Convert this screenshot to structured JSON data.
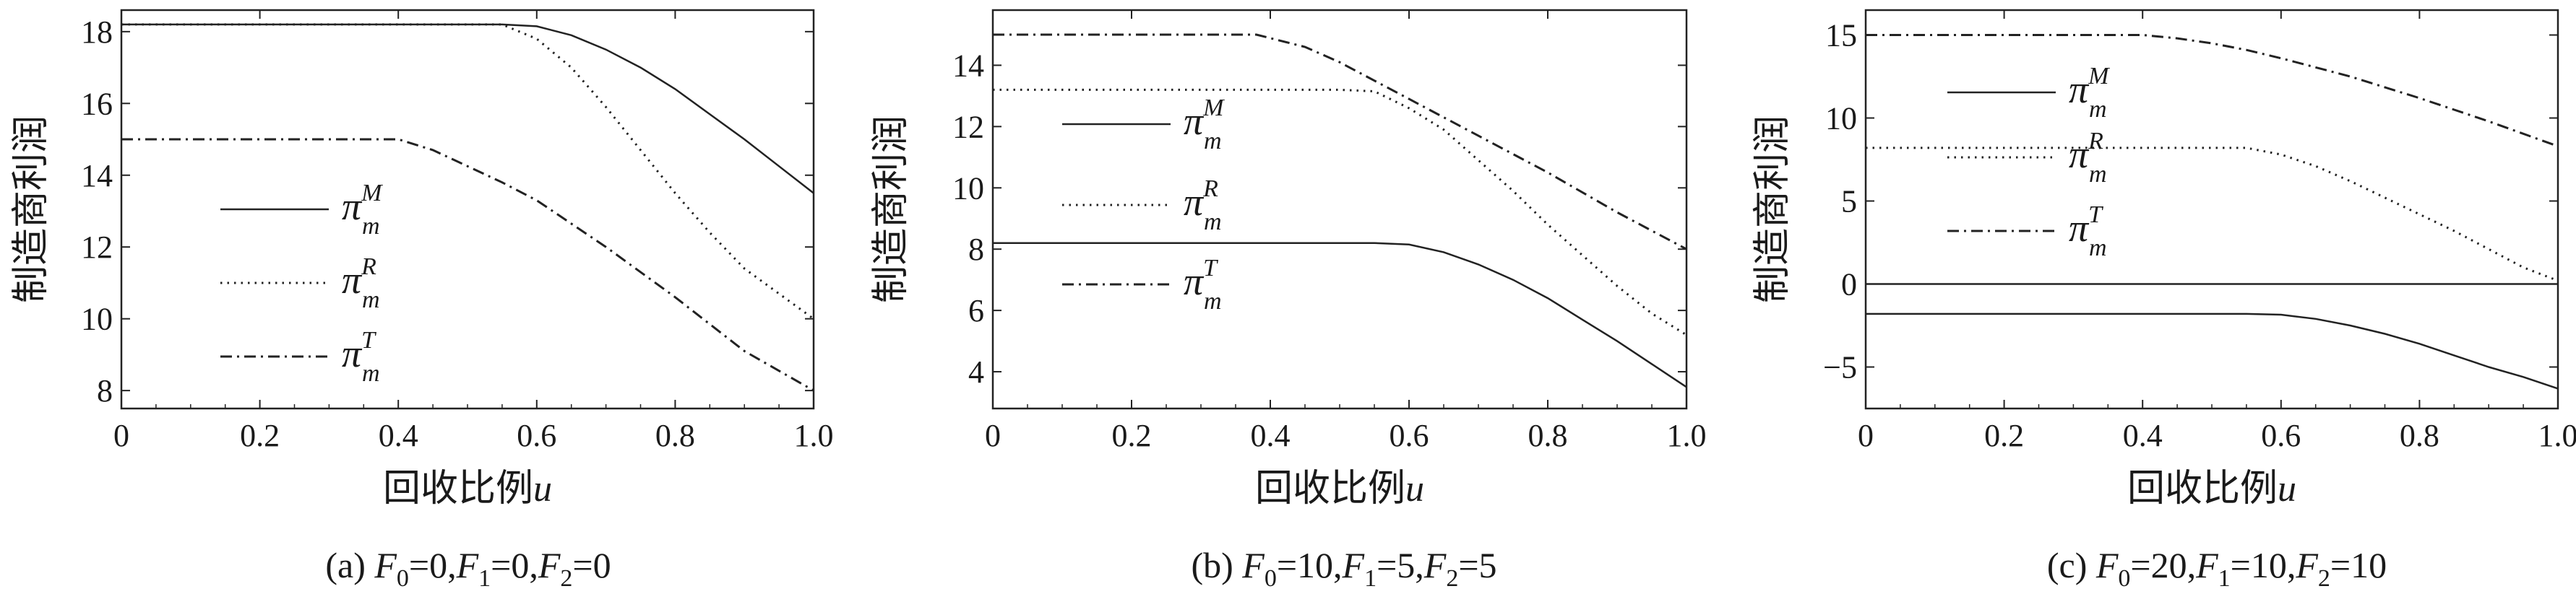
{
  "chart_data": [
    {
      "type": "line",
      "caption": {
        "prefix": "(a) ",
        "text": "F0=0,F1=0,F2=0",
        "parts": [
          {
            "t": "F",
            "s": "0",
            "v": "=0,"
          },
          {
            "t": "F",
            "s": "1",
            "v": "=0,"
          },
          {
            "t": "F",
            "s": "2",
            "v": "=0"
          }
        ]
      },
      "xlabel": "回收比例",
      "xlabel_var": "u",
      "ylabel": "制造商利润",
      "xlim": [
        0,
        1
      ],
      "ylim": [
        7.5,
        18.6
      ],
      "xticks": [
        0,
        0.2,
        0.4,
        0.6,
        0.8,
        1.0
      ],
      "xtick_labels": [
        "0",
        "0.2",
        "0.4",
        "0.6",
        "0.8",
        "1.0"
      ],
      "yticks": [
        8,
        10,
        12,
        14,
        16,
        18
      ],
      "ytick_labels": [
        "8",
        "10",
        "12",
        "14",
        "16",
        "18"
      ],
      "legend": {
        "placement": "middle-left"
      },
      "series": [
        {
          "name": "π_m^M",
          "sym": "π",
          "sub": "m",
          "sup": "M",
          "style": "solid",
          "x": [
            0,
            0.1,
            0.2,
            0.3,
            0.4,
            0.5,
            0.55,
            0.6,
            0.65,
            0.7,
            0.75,
            0.8,
            0.85,
            0.9,
            0.95,
            1.0
          ],
          "y": [
            18.2,
            18.2,
            18.2,
            18.2,
            18.2,
            18.2,
            18.2,
            18.15,
            17.9,
            17.5,
            17.0,
            16.4,
            15.7,
            15.0,
            14.25,
            13.5
          ]
        },
        {
          "name": "π_m^R",
          "sym": "π",
          "sub": "m",
          "sup": "R",
          "style": "dotted",
          "x": [
            0,
            0.1,
            0.2,
            0.3,
            0.4,
            0.5,
            0.55,
            0.6,
            0.65,
            0.7,
            0.75,
            0.8,
            0.85,
            0.9,
            0.95,
            1.0
          ],
          "y": [
            18.2,
            18.2,
            18.2,
            18.2,
            18.2,
            18.2,
            18.2,
            17.8,
            17.0,
            15.9,
            14.7,
            13.5,
            12.4,
            11.4,
            10.7,
            10.0
          ]
        },
        {
          "name": "π_m^T",
          "sym": "π",
          "sub": "m",
          "sup": "T",
          "style": "dashdot",
          "x": [
            0,
            0.1,
            0.2,
            0.3,
            0.4,
            0.45,
            0.5,
            0.55,
            0.6,
            0.7,
            0.8,
            0.9,
            1.0
          ],
          "y": [
            15.0,
            15.0,
            15.0,
            15.0,
            15.0,
            14.7,
            14.25,
            13.8,
            13.3,
            12.0,
            10.6,
            9.1,
            8.0
          ]
        }
      ]
    },
    {
      "type": "line",
      "caption": {
        "prefix": "(b) ",
        "text": "F0=10,F1=5,F2=5",
        "parts": [
          {
            "t": "F",
            "s": "0",
            "v": "=10,"
          },
          {
            "t": "F",
            "s": "1",
            "v": "=5,"
          },
          {
            "t": "F",
            "s": "2",
            "v": "=5"
          }
        ]
      },
      "xlabel": "回收比例",
      "xlabel_var": "u",
      "ylabel": "制造商利润",
      "xlim": [
        0,
        1
      ],
      "ylim": [
        2.8,
        15.8
      ],
      "xticks": [
        0,
        0.2,
        0.4,
        0.6,
        0.8,
        1.0
      ],
      "xtick_labels": [
        "0",
        "0.2",
        "0.4",
        "0.6",
        "0.8",
        "1.0"
      ],
      "yticks": [
        4,
        6,
        8,
        10,
        12,
        14
      ],
      "ytick_labels": [
        "4",
        "6",
        "8",
        "10",
        "12",
        "14"
      ],
      "legend": {
        "placement": "middle-left"
      },
      "series": [
        {
          "name": "π_m^M",
          "sym": "π",
          "sub": "m",
          "sup": "M",
          "style": "solid",
          "x": [
            0,
            0.1,
            0.2,
            0.3,
            0.4,
            0.5,
            0.55,
            0.6,
            0.65,
            0.7,
            0.75,
            0.8,
            0.85,
            0.9,
            0.95,
            1.0
          ],
          "y": [
            8.2,
            8.2,
            8.2,
            8.2,
            8.2,
            8.2,
            8.2,
            8.15,
            7.9,
            7.5,
            7.0,
            6.4,
            5.7,
            5.0,
            4.25,
            3.5
          ]
        },
        {
          "name": "π_m^R",
          "sym": "π",
          "sub": "m",
          "sup": "R",
          "style": "dotted",
          "x": [
            0,
            0.1,
            0.2,
            0.3,
            0.4,
            0.5,
            0.55,
            0.6,
            0.65,
            0.7,
            0.75,
            0.8,
            0.85,
            0.9,
            0.95,
            1.0
          ],
          "y": [
            13.2,
            13.2,
            13.2,
            13.2,
            13.2,
            13.2,
            13.15,
            12.6,
            11.9,
            10.9,
            9.9,
            8.8,
            7.8,
            6.8,
            5.9,
            5.2
          ]
        },
        {
          "name": "π_m^T",
          "sym": "π",
          "sub": "m",
          "sup": "T",
          "style": "dashdot",
          "x": [
            0,
            0.1,
            0.2,
            0.3,
            0.38,
            0.45,
            0.5,
            0.55,
            0.6,
            0.7,
            0.8,
            0.9,
            1.0
          ],
          "y": [
            15.0,
            15.0,
            15.0,
            15.0,
            15.0,
            14.6,
            14.1,
            13.5,
            12.9,
            11.7,
            10.5,
            9.2,
            8.0
          ]
        }
      ]
    },
    {
      "type": "line",
      "caption": {
        "prefix": "(c) ",
        "text": "F0=20,F1=10,F2=10",
        "parts": [
          {
            "t": "F",
            "s": "0",
            "v": "=20,"
          },
          {
            "t": "F",
            "s": "1",
            "v": "=10,"
          },
          {
            "t": "F",
            "s": "2",
            "v": "=10"
          }
        ]
      },
      "xlabel": "回收比例",
      "xlabel_var": "u",
      "ylabel": "制造商利润",
      "xlim": [
        0,
        1
      ],
      "ylim": [
        -7.5,
        16.5
      ],
      "xticks": [
        0,
        0.2,
        0.4,
        0.6,
        0.8,
        1.0
      ],
      "xtick_labels": [
        "0",
        "0.2",
        "0.4",
        "0.6",
        "0.8",
        "1.0"
      ],
      "yticks": [
        -5,
        0,
        5,
        10,
        15
      ],
      "ytick_labels": [
        "−5",
        "0",
        "5",
        "10",
        "15"
      ],
      "zero_line": true,
      "legend": {
        "placement": "upper-left"
      },
      "series": [
        {
          "name": "π_m^M",
          "sym": "π",
          "sub": "m",
          "sup": "M",
          "style": "solid",
          "x": [
            0,
            0.1,
            0.2,
            0.3,
            0.4,
            0.5,
            0.55,
            0.6,
            0.65,
            0.7,
            0.75,
            0.8,
            0.85,
            0.9,
            0.95,
            1.0
          ],
          "y": [
            -1.8,
            -1.8,
            -1.8,
            -1.8,
            -1.8,
            -1.8,
            -1.8,
            -1.85,
            -2.1,
            -2.5,
            -3.0,
            -3.6,
            -4.3,
            -5.0,
            -5.6,
            -6.3
          ]
        },
        {
          "name": "π_m^R",
          "sym": "π",
          "sub": "m",
          "sup": "R",
          "style": "dotted",
          "x": [
            0,
            0.1,
            0.2,
            0.3,
            0.4,
            0.5,
            0.55,
            0.6,
            0.65,
            0.7,
            0.75,
            0.8,
            0.85,
            0.9,
            0.95,
            1.0
          ],
          "y": [
            8.2,
            8.2,
            8.2,
            8.2,
            8.2,
            8.2,
            8.2,
            7.8,
            7.1,
            6.2,
            5.2,
            4.2,
            3.2,
            2.1,
            1.0,
            0.2
          ]
        },
        {
          "name": "π_m^T",
          "sym": "π",
          "sub": "m",
          "sup": "T",
          "style": "dashdot",
          "x": [
            0,
            0.1,
            0.2,
            0.3,
            0.4,
            0.45,
            0.5,
            0.55,
            0.6,
            0.7,
            0.8,
            0.9,
            1.0
          ],
          "y": [
            15.0,
            15.0,
            15.0,
            15.0,
            15.0,
            14.8,
            14.5,
            14.1,
            13.6,
            12.5,
            11.2,
            9.8,
            8.3
          ]
        }
      ]
    }
  ]
}
